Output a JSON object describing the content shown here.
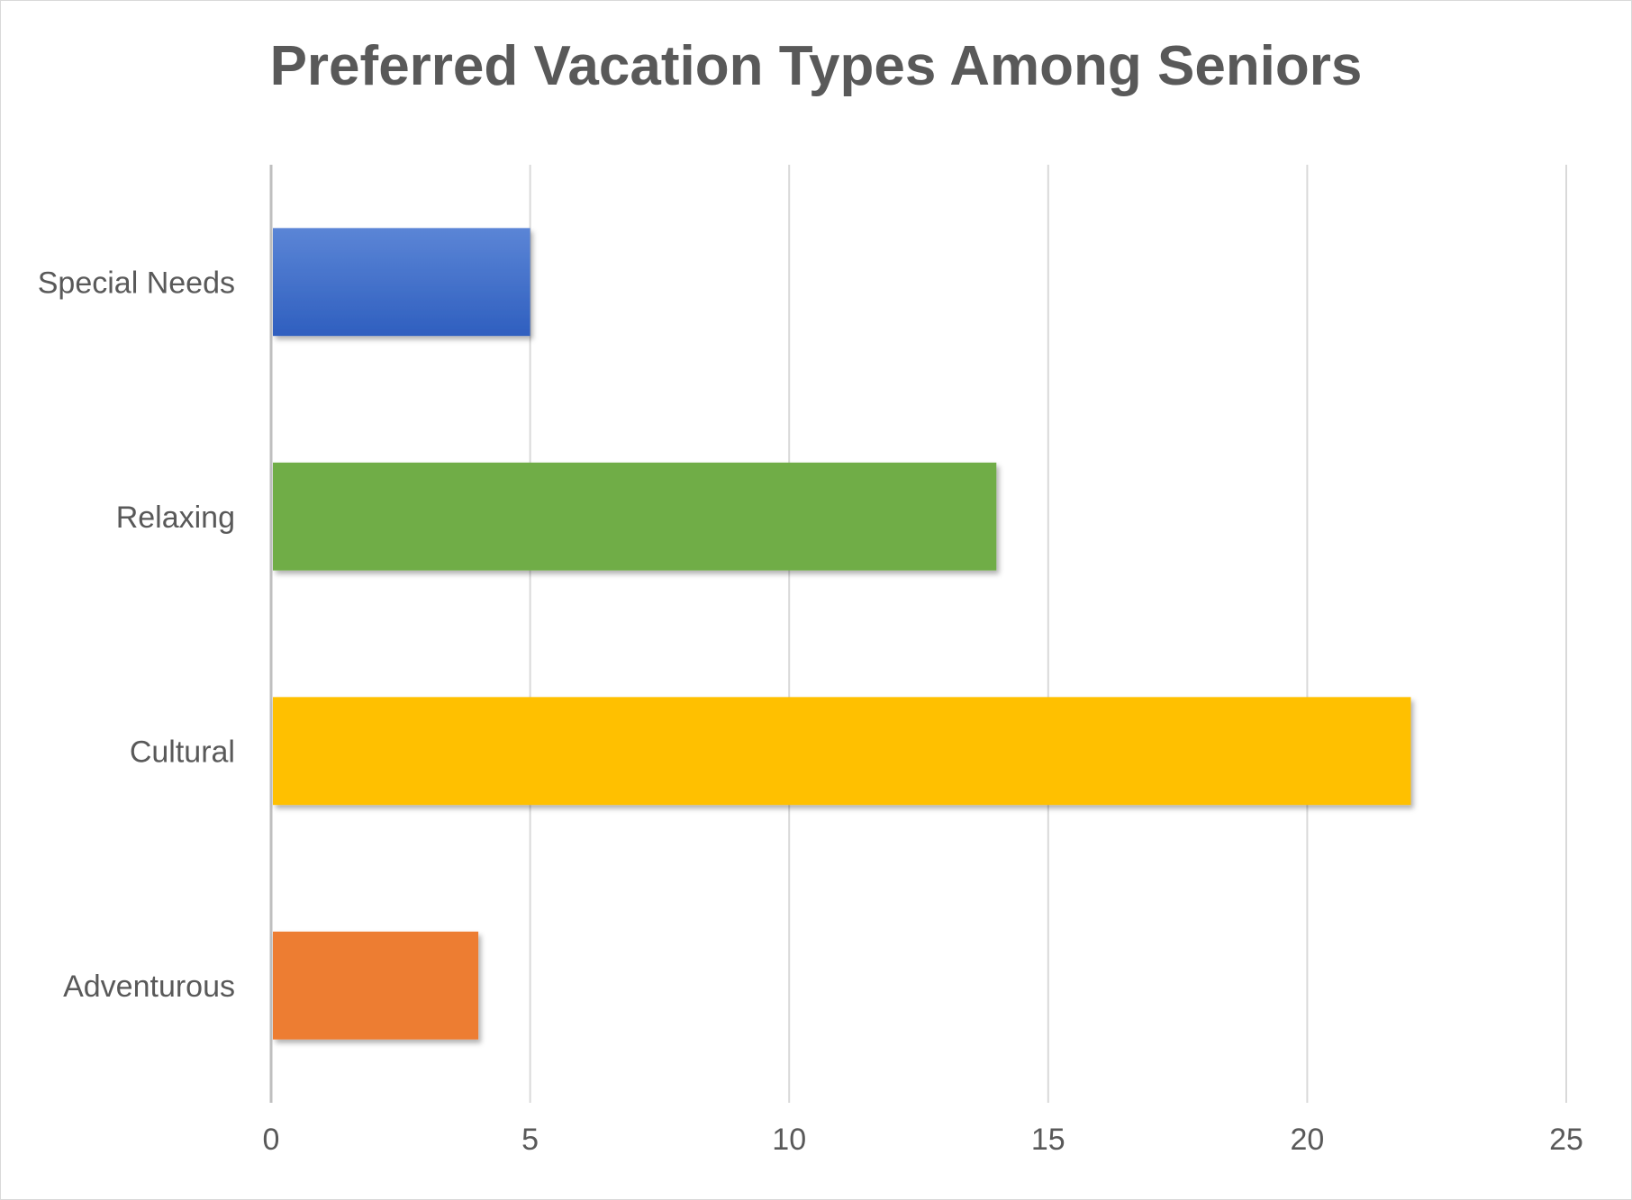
{
  "chart_data": {
    "type": "bar",
    "orientation": "horizontal",
    "title": "Preferred Vacation Types Among Seniors",
    "xlabel": "",
    "ylabel": "",
    "categories": [
      "Special Needs",
      "Relaxing",
      "Cultural",
      "Adventurous"
    ],
    "values": [
      5,
      14,
      22,
      4
    ],
    "colors": [
      "#4472C4",
      "#70AD47",
      "#FFC000",
      "#ED7D31"
    ],
    "xlim": [
      0,
      25
    ],
    "xticks": [
      "0",
      "5",
      "10",
      "15",
      "20",
      "25"
    ],
    "grid": true,
    "legend": "none"
  }
}
